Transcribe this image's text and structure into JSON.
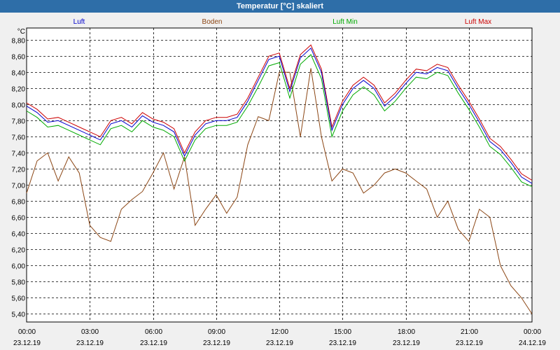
{
  "window": {
    "title": "Temperatur [°C] skaliert"
  },
  "chart_data": {
    "type": "line",
    "title": "Temperatur [°C] skaliert",
    "ylabel": "°C",
    "xlabel": "",
    "ylim": [
      5.3,
      8.95
    ],
    "xlim": [
      0,
      24
    ],
    "grid": true,
    "yticks": [
      5.4,
      5.6,
      5.8,
      6.0,
      6.2,
      6.4,
      6.6,
      6.8,
      7.0,
      7.2,
      7.4,
      7.6,
      7.8,
      8.0,
      8.2,
      8.4,
      8.6,
      8.8
    ],
    "ytick_labels": [
      "5,40",
      "5,60",
      "5,80",
      "6,00",
      "6,20",
      "6,40",
      "6,60",
      "6,80",
      "7,00",
      "7,20",
      "7,40",
      "7,60",
      "7,80",
      "8,00",
      "8,20",
      "8,40",
      "8,60",
      "8,80"
    ],
    "xticks": [
      0,
      3,
      6,
      9,
      12,
      15,
      18,
      21,
      24
    ],
    "xtick_times": [
      "00:00",
      "03:00",
      "06:00",
      "09:00",
      "12:00",
      "15:00",
      "18:00",
      "21:00",
      "00:00"
    ],
    "xtick_dates": [
      "23.12.19",
      "23.12.19",
      "23.12.19",
      "23.12.19",
      "23.12.19",
      "23.12.19",
      "23.12.19",
      "23.12.19",
      "24.12.19"
    ],
    "x": [
      0,
      0.5,
      1,
      1.5,
      2,
      2.5,
      3,
      3.5,
      4,
      4.5,
      5,
      5.5,
      6,
      6.5,
      7,
      7.5,
      8,
      8.5,
      9,
      9.5,
      10,
      10.5,
      11,
      11.5,
      12,
      12.5,
      13,
      13.5,
      14,
      14.5,
      15,
      15.5,
      16,
      16.5,
      17,
      17.5,
      18,
      18.5,
      19,
      19.5,
      20,
      20.5,
      21,
      21.5,
      22,
      22.5,
      23,
      23.5,
      24
    ],
    "series": [
      {
        "name": "Luft",
        "color": "#0000cc",
        "values": [
          7.98,
          7.9,
          7.78,
          7.8,
          7.74,
          7.68,
          7.62,
          7.56,
          7.76,
          7.8,
          7.72,
          7.86,
          7.78,
          7.74,
          7.66,
          7.36,
          7.62,
          7.76,
          7.8,
          7.8,
          7.84,
          8.04,
          8.3,
          8.56,
          8.6,
          8.16,
          8.58,
          8.7,
          8.4,
          7.68,
          8.0,
          8.2,
          8.3,
          8.2,
          7.98,
          8.1,
          8.26,
          8.4,
          8.38,
          8.46,
          8.42,
          8.2,
          8.0,
          7.78,
          7.54,
          7.44,
          7.28,
          7.1,
          7.02
        ]
      },
      {
        "name": "Boden",
        "color": "#8b4513",
        "values": [
          6.9,
          7.3,
          7.4,
          7.05,
          7.35,
          7.15,
          6.5,
          6.35,
          6.3,
          6.7,
          6.82,
          6.92,
          7.15,
          7.4,
          6.95,
          7.35,
          6.5,
          6.7,
          6.88,
          6.65,
          6.85,
          7.5,
          7.85,
          7.8,
          8.4,
          8.4,
          7.6,
          8.45,
          7.6,
          7.05,
          7.2,
          7.15,
          6.9,
          7.0,
          7.15,
          7.2,
          7.15,
          7.05,
          6.95,
          6.6,
          6.8,
          6.45,
          6.3,
          6.7,
          6.6,
          6.0,
          5.75,
          5.6,
          5.4
        ]
      },
      {
        "name": "Luft Min",
        "color": "#00aa00",
        "values": [
          7.92,
          7.84,
          7.72,
          7.74,
          7.68,
          7.62,
          7.56,
          7.5,
          7.7,
          7.74,
          7.66,
          7.8,
          7.72,
          7.68,
          7.6,
          7.3,
          7.56,
          7.7,
          7.74,
          7.74,
          7.78,
          7.98,
          8.22,
          8.48,
          8.52,
          8.08,
          8.5,
          8.62,
          8.32,
          7.6,
          7.92,
          8.12,
          8.22,
          8.12,
          7.92,
          8.04,
          8.2,
          8.34,
          8.32,
          8.4,
          8.36,
          8.14,
          7.94,
          7.72,
          7.48,
          7.38,
          7.22,
          7.04,
          6.98
        ]
      },
      {
        "name": "Luft Max",
        "color": "#cc0000",
        "values": [
          8.02,
          7.94,
          7.82,
          7.84,
          7.78,
          7.72,
          7.66,
          7.6,
          7.8,
          7.84,
          7.76,
          7.9,
          7.82,
          7.78,
          7.7,
          7.4,
          7.66,
          7.8,
          7.84,
          7.84,
          7.88,
          8.08,
          8.34,
          8.6,
          8.64,
          8.2,
          8.62,
          8.74,
          8.44,
          7.72,
          8.04,
          8.24,
          8.34,
          8.24,
          8.02,
          8.14,
          8.3,
          8.44,
          8.42,
          8.5,
          8.46,
          8.24,
          8.04,
          7.82,
          7.58,
          7.48,
          7.32,
          7.14,
          7.06
        ]
      }
    ]
  }
}
